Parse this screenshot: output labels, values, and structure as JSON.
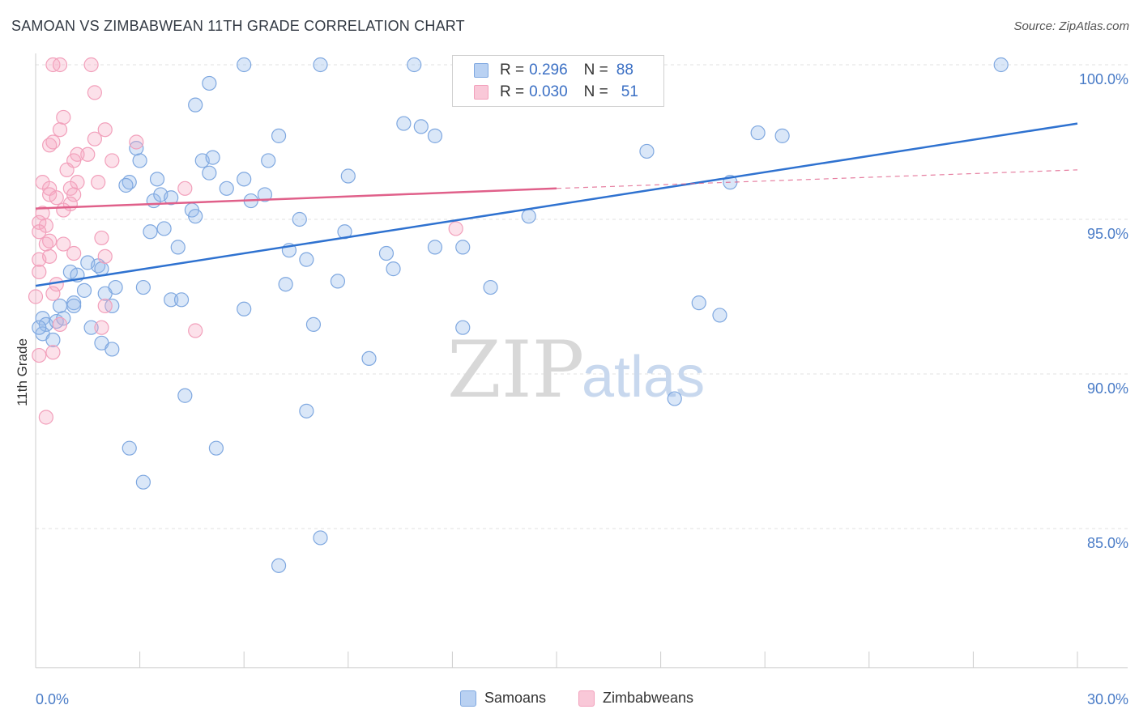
{
  "header": {
    "title": "SAMOAN VS ZIMBABWEAN 11TH GRADE CORRELATION CHART",
    "source": "Source: ZipAtlas.com"
  },
  "legend": {
    "samoans": {
      "r_label": "R =",
      "r_value": "0.296",
      "n_label": "N =",
      "n_value": "88"
    },
    "zimbabweans": {
      "r_label": "R =",
      "r_value": "0.030",
      "n_label": "N =",
      "n_value": "51"
    }
  },
  "watermark": {
    "zip": "ZIP",
    "atlas": "atlas"
  },
  "chart_data": {
    "type": "scatter",
    "title": "SAMOAN VS ZIMBABWEAN 11TH GRADE CORRELATION CHART",
    "ylabel": "11th Grade",
    "xlabel": "",
    "xlim": [
      0,
      30
    ],
    "ylim": [
      80.5,
      100.8
    ],
    "x_tick_labels": [
      {
        "value": 0,
        "label": "0.0%"
      },
      {
        "value": 30,
        "label": "30.0%"
      }
    ],
    "y_tick_labels": [
      {
        "value": 100,
        "label": "100.0%"
      },
      {
        "value": 95,
        "label": "95.0%"
      },
      {
        "value": 90,
        "label": "90.0%"
      },
      {
        "value": 85,
        "label": "85.0%"
      }
    ],
    "grid": "horizontal-dashed",
    "legend_placement": "top-center",
    "series": [
      {
        "name": "Samoans",
        "color": "#7fa8e0",
        "trend_color": "#2f72d0",
        "trend": {
          "x": [
            0,
            30
          ],
          "y": [
            92.85,
            98.1
          ]
        },
        "points": [
          [
            0.2,
            91.8
          ],
          [
            0.3,
            91.6
          ],
          [
            0.2,
            91.3
          ],
          [
            0.5,
            91.1
          ],
          [
            0.6,
            91.7
          ],
          [
            0.7,
            92.2
          ],
          [
            0.8,
            91.8
          ],
          [
            1.1,
            92.3
          ],
          [
            1.1,
            92.2
          ],
          [
            1.4,
            92.7
          ],
          [
            1.0,
            93.3
          ],
          [
            1.2,
            93.2
          ],
          [
            1.5,
            93.6
          ],
          [
            1.8,
            93.5
          ],
          [
            1.9,
            93.4
          ],
          [
            2.0,
            92.6
          ],
          [
            2.3,
            92.8
          ],
          [
            2.2,
            92.2
          ],
          [
            1.6,
            91.5
          ],
          [
            1.9,
            91.0
          ],
          [
            2.2,
            90.8
          ],
          [
            3.1,
            92.8
          ],
          [
            3.9,
            92.4
          ],
          [
            4.2,
            92.4
          ],
          [
            3.3,
            94.6
          ],
          [
            3.7,
            94.7
          ],
          [
            4.1,
            94.1
          ],
          [
            4.5,
            95.3
          ],
          [
            4.6,
            95.1
          ],
          [
            3.4,
            95.6
          ],
          [
            3.6,
            95.8
          ],
          [
            3.9,
            95.7
          ],
          [
            2.7,
            96.2
          ],
          [
            2.6,
            96.1
          ],
          [
            3.5,
            96.3
          ],
          [
            3.0,
            96.9
          ],
          [
            2.9,
            97.3
          ],
          [
            4.8,
            96.9
          ],
          [
            5.1,
            97.0
          ],
          [
            5.0,
            96.5
          ],
          [
            5.5,
            96.0
          ],
          [
            6.0,
            96.3
          ],
          [
            6.2,
            95.6
          ],
          [
            6.6,
            95.8
          ],
          [
            6.7,
            96.9
          ],
          [
            7.0,
            97.7
          ],
          [
            4.6,
            98.7
          ],
          [
            5.0,
            99.4
          ],
          [
            6.0,
            100.0
          ],
          [
            8.2,
            100.0
          ],
          [
            10.9,
            100.0
          ],
          [
            15.0,
            100.0
          ],
          [
            27.8,
            100.0
          ],
          [
            10.6,
            98.1
          ],
          [
            11.1,
            98.0
          ],
          [
            11.5,
            97.7
          ],
          [
            7.6,
            95.0
          ],
          [
            7.3,
            94.0
          ],
          [
            7.8,
            93.7
          ],
          [
            8.9,
            94.6
          ],
          [
            8.7,
            93.0
          ],
          [
            7.2,
            92.9
          ],
          [
            10.1,
            93.9
          ],
          [
            10.3,
            93.4
          ],
          [
            11.5,
            94.1
          ],
          [
            12.3,
            94.1
          ],
          [
            13.1,
            92.8
          ],
          [
            14.2,
            95.1
          ],
          [
            9.0,
            96.4
          ],
          [
            17.6,
            97.2
          ],
          [
            20.8,
            97.8
          ],
          [
            21.5,
            97.7
          ],
          [
            20.0,
            96.2
          ],
          [
            19.1,
            92.3
          ],
          [
            19.7,
            91.9
          ],
          [
            18.4,
            89.2
          ],
          [
            12.3,
            91.5
          ],
          [
            6.0,
            92.1
          ],
          [
            9.6,
            90.5
          ],
          [
            8.0,
            91.6
          ],
          [
            4.3,
            89.3
          ],
          [
            7.8,
            88.8
          ],
          [
            2.7,
            87.6
          ],
          [
            5.2,
            87.6
          ],
          [
            3.1,
            86.5
          ],
          [
            8.2,
            84.7
          ],
          [
            7.0,
            83.8
          ],
          [
            0.1,
            91.5
          ]
        ]
      },
      {
        "name": "Zimbabweans",
        "color": "#f2a0bb",
        "trend_color": "#e0608a",
        "trend": {
          "x": [
            0,
            15
          ],
          "y": [
            95.35,
            96.0
          ]
        },
        "trend_extension": {
          "x": [
            15,
            30
          ],
          "y": [
            96.0,
            96.6
          ]
        },
        "points": [
          [
            0.5,
            100.0
          ],
          [
            0.7,
            100.0
          ],
          [
            1.6,
            100.0
          ],
          [
            1.7,
            99.1
          ],
          [
            0.8,
            98.3
          ],
          [
            0.7,
            97.9
          ],
          [
            2.0,
            97.9
          ],
          [
            2.9,
            97.5
          ],
          [
            1.7,
            97.6
          ],
          [
            0.4,
            97.4
          ],
          [
            0.5,
            97.5
          ],
          [
            1.5,
            97.1
          ],
          [
            1.2,
            97.1
          ],
          [
            1.1,
            96.9
          ],
          [
            2.2,
            96.9
          ],
          [
            0.9,
            96.6
          ],
          [
            0.2,
            96.2
          ],
          [
            1.2,
            96.2
          ],
          [
            1.8,
            96.2
          ],
          [
            0.4,
            96.0
          ],
          [
            0.4,
            95.8
          ],
          [
            1.0,
            96.0
          ],
          [
            1.1,
            95.8
          ],
          [
            0.6,
            95.7
          ],
          [
            4.3,
            96.0
          ],
          [
            1.0,
            95.5
          ],
          [
            0.8,
            95.3
          ],
          [
            0.2,
            95.2
          ],
          [
            0.1,
            94.9
          ],
          [
            0.3,
            94.8
          ],
          [
            0.1,
            94.6
          ],
          [
            0.3,
            94.2
          ],
          [
            0.4,
            94.3
          ],
          [
            0.8,
            94.2
          ],
          [
            1.9,
            94.4
          ],
          [
            1.1,
            93.9
          ],
          [
            2.0,
            93.8
          ],
          [
            0.1,
            93.7
          ],
          [
            0.4,
            93.8
          ],
          [
            0.6,
            92.9
          ],
          [
            0.5,
            92.6
          ],
          [
            0.1,
            93.3
          ],
          [
            2.0,
            92.2
          ],
          [
            0.0,
            92.5
          ],
          [
            0.7,
            91.6
          ],
          [
            1.9,
            91.5
          ],
          [
            4.6,
            91.4
          ],
          [
            0.5,
            90.7
          ],
          [
            0.1,
            90.6
          ],
          [
            0.3,
            88.6
          ],
          [
            12.1,
            94.7
          ]
        ]
      }
    ]
  }
}
